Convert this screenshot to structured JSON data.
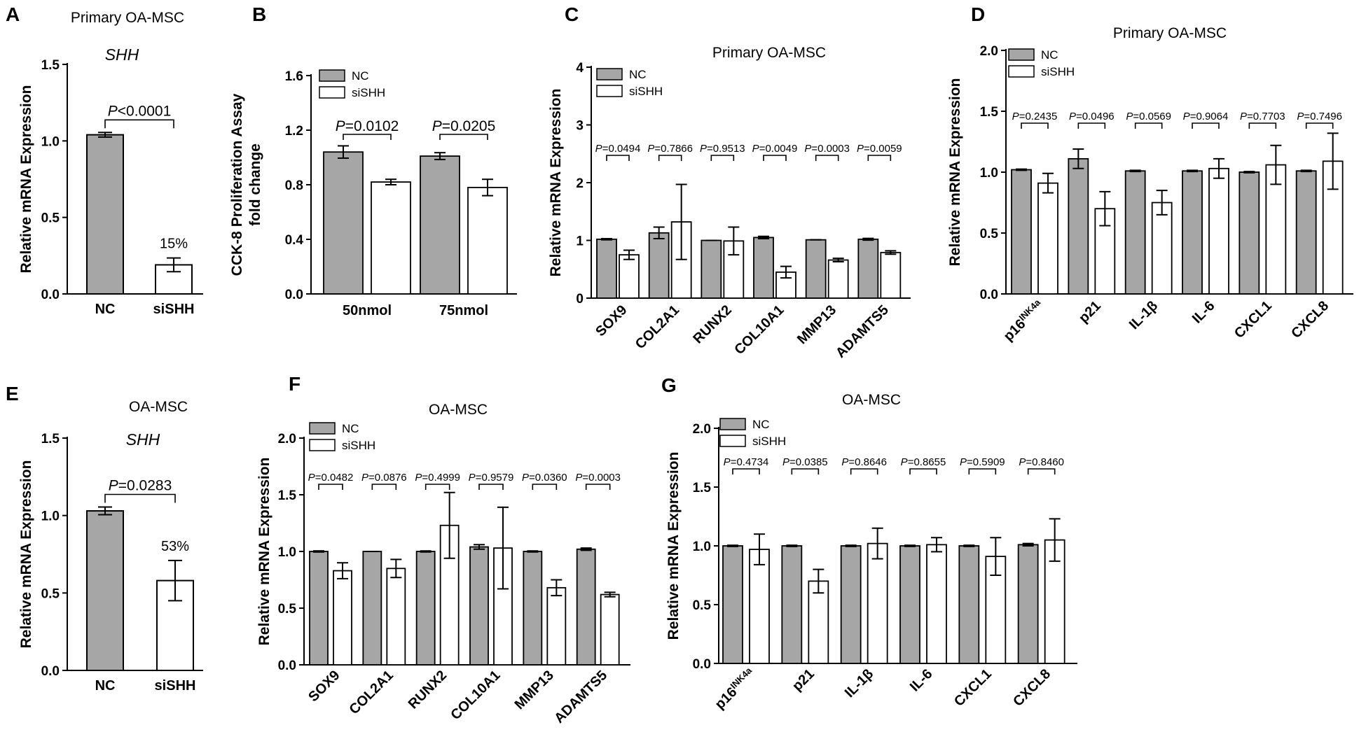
{
  "legend": {
    "nc": "NC",
    "sish": "siSHH"
  },
  "colors": {
    "nc": "#a6a6a6",
    "sish": "#ffffff",
    "stroke": "#000000"
  },
  "chart_data": [
    {
      "panel": "A",
      "type": "bar",
      "title": "Primary OA-MSC",
      "subtitle": "SHH",
      "ylabel": "Relative mRNA Expression",
      "ylim": [
        0,
        1.5
      ],
      "yticks": [
        "0.0",
        "0.5",
        "1.0",
        "1.5"
      ],
      "categories": [
        "NC",
        "siSHH"
      ],
      "values": [
        1.04,
        0.19
      ],
      "errors": [
        0.015,
        0.045
      ],
      "pvalue_prefix": "P",
      "pvalue": "<0.0001",
      "annotation": "15%"
    },
    {
      "panel": "B",
      "type": "bar",
      "title": "",
      "ylabel": "CCK-8 Proliferation Assay fold change",
      "ylim": [
        0,
        1.6
      ],
      "yticks": [
        "0.0",
        "0.4",
        "0.8",
        "1.2",
        "1.6"
      ],
      "categories": [
        "50nmol",
        "75nmol"
      ],
      "series": [
        {
          "name": "NC",
          "values": [
            1.04,
            1.01
          ],
          "errors": [
            0.045,
            0.025
          ]
        },
        {
          "name": "siSHH",
          "values": [
            0.82,
            0.78
          ],
          "errors": [
            0.02,
            0.06
          ]
        }
      ],
      "pvalue_prefix": "P",
      "pvalues": [
        "=0.0102",
        "=0.0205"
      ]
    },
    {
      "panel": "C",
      "type": "bar",
      "title": "Primary OA-MSC",
      "ylabel": "Relative mRNA Expression",
      "ylim": [
        0,
        4
      ],
      "yticks": [
        "0",
        "1",
        "2",
        "3",
        "4"
      ],
      "categories": [
        "SOX9",
        "COL2A1",
        "RUNX2",
        "COL10A1",
        "MMP13",
        "ADAMTS5"
      ],
      "series": [
        {
          "name": "NC",
          "values": [
            1.02,
            1.13,
            1.0,
            1.05,
            1.01,
            1.02
          ],
          "errors": [
            0.01,
            0.1,
            0.0,
            0.02,
            0.0,
            0.015
          ]
        },
        {
          "name": "siSHH",
          "values": [
            0.75,
            1.32,
            0.99,
            0.45,
            0.66,
            0.79
          ],
          "errors": [
            0.08,
            0.65,
            0.24,
            0.1,
            0.03,
            0.03
          ]
        }
      ],
      "pvalue_prefix": "P",
      "pvalues": [
        "=0.0494",
        "=0.7866",
        "=0.9513",
        "=0.0049",
        "=0.0003",
        "=0.0059"
      ]
    },
    {
      "panel": "D",
      "type": "bar",
      "title": "Primary OA-MSC",
      "ylabel": "Relative mRNA Expression",
      "ylim": [
        0,
        2.0
      ],
      "yticks": [
        "0.0",
        "0.5",
        "1.0",
        "1.5",
        "2.0"
      ],
      "categories": [
        "p16",
        "p21",
        "IL-1β",
        "IL-6",
        "CXCL1",
        "CXCL8"
      ],
      "cat_superscripts": [
        "INK4a",
        "",
        "",
        "",
        "",
        ""
      ],
      "series": [
        {
          "name": "NC",
          "values": [
            1.02,
            1.11,
            1.01,
            1.01,
            1.0,
            1.01
          ],
          "errors": [
            0.005,
            0.08,
            0.005,
            0.005,
            0.005,
            0.005
          ]
        },
        {
          "name": "siSHH",
          "values": [
            0.91,
            0.7,
            0.75,
            1.03,
            1.06,
            1.09
          ],
          "errors": [
            0.08,
            0.14,
            0.1,
            0.08,
            0.16,
            0.23
          ]
        }
      ],
      "pvalue_prefix": "P",
      "pvalues": [
        "=0.2435",
        "=0.0496",
        "=0.0569",
        "=0.9064",
        "=0.7703",
        "=0.7496"
      ]
    },
    {
      "panel": "E",
      "type": "bar",
      "title": "OA-MSC",
      "subtitle": "SHH",
      "ylabel": "Relative mRNA Expression",
      "ylim": [
        0,
        1.5
      ],
      "yticks": [
        "0.0",
        "0.5",
        "1.0",
        "1.5"
      ],
      "categories": [
        "NC",
        "siSHH"
      ],
      "values": [
        1.03,
        0.58
      ],
      "errors": [
        0.025,
        0.13
      ],
      "pvalue_prefix": "P",
      "pvalue": "=0.0283",
      "annotation": "53%"
    },
    {
      "panel": "F",
      "type": "bar",
      "title": "OA-MSC",
      "ylabel": "Relative mRNA Expression",
      "ylim": [
        0,
        2.0
      ],
      "yticks": [
        "0.0",
        "0.5",
        "1.0",
        "1.5",
        "2.0"
      ],
      "categories": [
        "SOX9",
        "COL2A1",
        "RUNX2",
        "COL10A1",
        "MMP13",
        "ADAMTS5"
      ],
      "series": [
        {
          "name": "NC",
          "values": [
            1.0,
            1.0,
            1.0,
            1.04,
            1.0,
            1.02
          ],
          "errors": [
            0.005,
            0.0,
            0.005,
            0.02,
            0.005,
            0.01
          ]
        },
        {
          "name": "siSHH",
          "values": [
            0.83,
            0.85,
            1.23,
            1.03,
            0.68,
            0.62
          ],
          "errors": [
            0.07,
            0.08,
            0.29,
            0.36,
            0.07,
            0.02
          ]
        }
      ],
      "pvalue_prefix": "P",
      "pvalues": [
        "=0.0482",
        "=0.0876",
        "=0.4999",
        "=0.9579",
        "=0.0360",
        "=0.0003"
      ]
    },
    {
      "panel": "G",
      "type": "bar",
      "title": "OA-MSC",
      "ylabel": "Relative mRNA Expression",
      "ylim": [
        0,
        2.0
      ],
      "yticks": [
        "0.0",
        "0.5",
        "1.0",
        "1.5",
        "2.0"
      ],
      "categories": [
        "p16",
        "p21",
        "IL-1β",
        "IL-6",
        "CXCL1",
        "CXCL8"
      ],
      "cat_superscripts": [
        "INK4a",
        "",
        "",
        "",
        "",
        ""
      ],
      "series": [
        {
          "name": "NC",
          "values": [
            1.0,
            1.0,
            1.0,
            1.0,
            1.0,
            1.01
          ],
          "errors": [
            0.005,
            0.005,
            0.005,
            0.005,
            0.005,
            0.01
          ]
        },
        {
          "name": "siSHH",
          "values": [
            0.97,
            0.7,
            1.02,
            1.01,
            0.91,
            1.05
          ],
          "errors": [
            0.13,
            0.1,
            0.13,
            0.06,
            0.16,
            0.18
          ]
        }
      ],
      "pvalue_prefix": "P",
      "pvalues": [
        "=0.4734",
        "=0.0385",
        "=0.8646",
        "=0.8655",
        "=0.5909",
        "=0.8460"
      ]
    }
  ]
}
